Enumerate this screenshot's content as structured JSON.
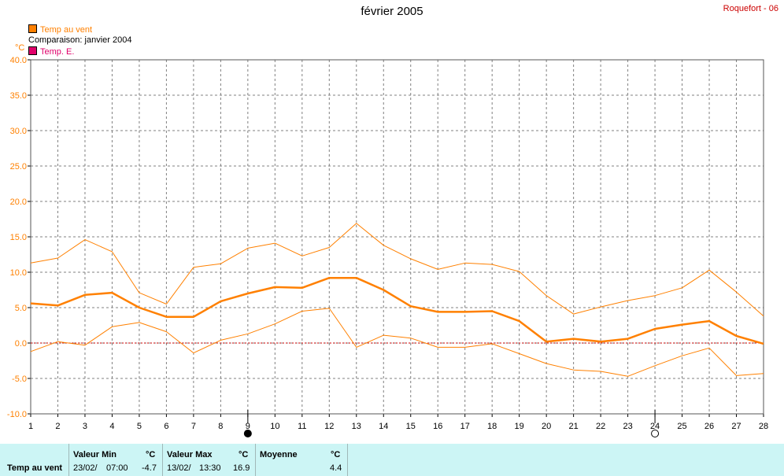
{
  "header": {
    "title": "février 2005",
    "station": "Roquefort - 06"
  },
  "legend": [
    {
      "label": "Temp au vent",
      "color": "#ff8000",
      "swatch": true
    },
    {
      "label": "Comparaison: janvier 2004",
      "color": "#000000",
      "swatch": false
    },
    {
      "label": "Temp. E.",
      "color": "#e0006a",
      "swatch": true
    }
  ],
  "chart_data": {
    "type": "line",
    "unit": "°C",
    "ylim": [
      -10,
      40
    ],
    "yticks": [
      "-10.0",
      "-5.0",
      "0.0",
      "5.0",
      "10.0",
      "15.0",
      "20.0",
      "25.0",
      "30.0",
      "35.0",
      "40.0"
    ],
    "x": [
      1,
      2,
      3,
      4,
      5,
      6,
      7,
      8,
      9,
      10,
      11,
      12,
      13,
      14,
      15,
      16,
      17,
      18,
      19,
      20,
      21,
      22,
      23,
      24,
      25,
      26,
      27,
      28
    ],
    "xlim": [
      1,
      28
    ],
    "grid": true,
    "reference_line": 0,
    "series": [
      {
        "name": "max",
        "values": [
          11.3,
          12.0,
          14.6,
          12.9,
          7.1,
          5.5,
          10.7,
          11.2,
          13.4,
          14.1,
          12.3,
          13.5,
          16.9,
          13.8,
          11.9,
          10.4,
          11.3,
          11.1,
          10.1,
          6.7,
          4.1,
          5.1,
          6.0,
          6.7,
          7.8,
          10.3,
          7.2,
          3.8
        ]
      },
      {
        "name": "mean",
        "values": [
          5.6,
          5.3,
          6.8,
          7.1,
          5.0,
          3.7,
          3.7,
          5.9,
          7.0,
          7.9,
          7.8,
          9.2,
          9.2,
          7.5,
          5.2,
          4.4,
          4.4,
          4.5,
          3.1,
          0.2,
          0.6,
          0.2,
          0.6,
          2.0,
          2.6,
          3.1,
          1.0,
          -0.1
        ]
      },
      {
        "name": "min",
        "values": [
          -1.2,
          0.2,
          -0.3,
          2.3,
          2.9,
          1.6,
          -1.4,
          0.4,
          1.3,
          2.7,
          4.5,
          4.9,
          -0.6,
          1.1,
          0.7,
          -0.6,
          -0.6,
          -0.1,
          -1.5,
          -2.9,
          -3.8,
          -4.0,
          -4.7,
          -3.2,
          -1.8,
          -0.7,
          -4.6,
          -4.3
        ]
      }
    ],
    "moon_phases": [
      {
        "day": 9,
        "phase": "new"
      },
      {
        "day": 24,
        "phase": "full"
      }
    ]
  },
  "summary": {
    "row_label": "Temp au vent",
    "min": {
      "header": "Valeur Min",
      "unit": "°C",
      "date": "23/02/",
      "time": "07:00",
      "value": "-4.7"
    },
    "max": {
      "header": "Valeur Max",
      "unit": "°C",
      "date": "13/02/",
      "time": "13:30",
      "value": "16.9"
    },
    "mean": {
      "header": "Moyenne",
      "unit": "°C",
      "value": "4.4"
    }
  }
}
